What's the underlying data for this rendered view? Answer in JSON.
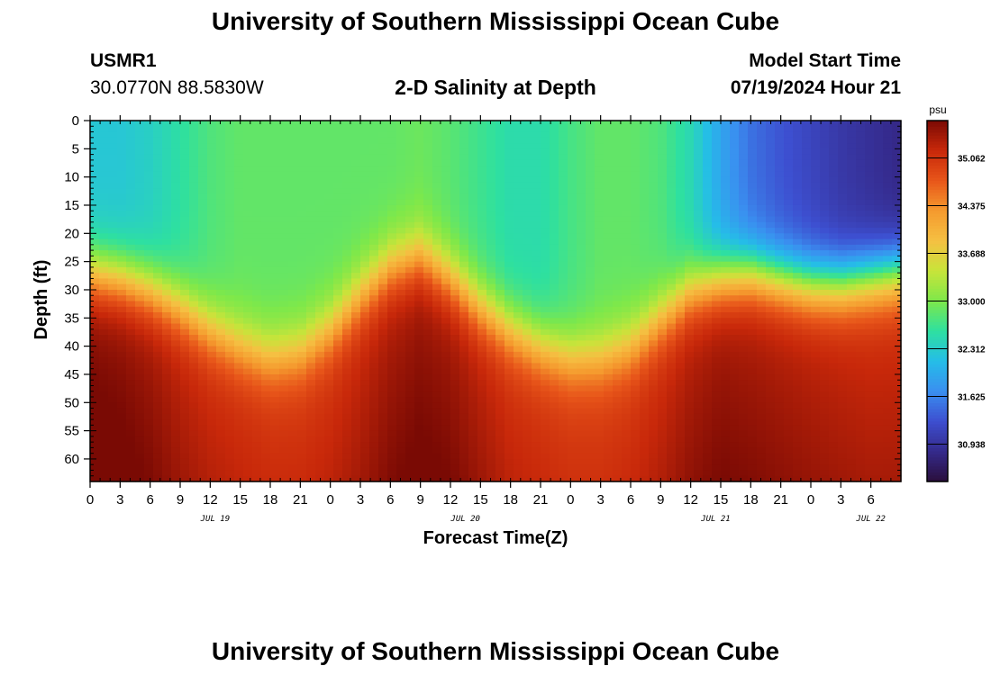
{
  "header": {
    "title_top": "University of Southern Mississippi Ocean Cube",
    "station": "USMR1",
    "coords": "30.0770N  88.5830W",
    "subtitle": "2-D Salinity at Depth",
    "start_label": "Model Start Time",
    "start_value": "07/19/2024 Hour 21",
    "title_bottom": "University of Southern Mississippi Ocean Cube"
  },
  "colors": {
    "palette": [
      "#2a0f3c",
      "#352a8c",
      "#3d4fd0",
      "#3a8ff0",
      "#25bde8",
      "#2ee0a0",
      "#7ee84a",
      "#c8e43a",
      "#f5c042",
      "#f59a2e",
      "#e8561a",
      "#c8280a",
      "#7a0a04"
    ]
  },
  "chart_data": {
    "type": "heatmap",
    "title": "2-D Salinity at Depth",
    "xlabel": "Forecast Time(Z)",
    "ylabel": "Depth (ft)",
    "colorbar_unit": "psu",
    "colorbar_ticks": [
      "35.062",
      "34.375",
      "33.688",
      "33.000",
      "32.312",
      "31.625",
      "30.938"
    ],
    "colorbar_range": [
      30.4,
      35.6
    ],
    "x_hours_range": [
      0,
      81
    ],
    "x_tick_labels": [
      "0",
      "3",
      "6",
      "9",
      "12",
      "15",
      "18",
      "21",
      "0",
      "3",
      "6",
      "9",
      "12",
      "15",
      "18",
      "21",
      "0",
      "3",
      "6",
      "9",
      "12",
      "15",
      "18",
      "21",
      "0",
      "3",
      "6"
    ],
    "date_labels": [
      {
        "label": "JUL 19",
        "hour": 12.5
      },
      {
        "label": "JUL 20",
        "hour": 37.5
      },
      {
        "label": "JUL 21",
        "hour": 62.5
      },
      {
        "label": "JUL 22",
        "hour": 78
      }
    ],
    "y_range": [
      0,
      64
    ],
    "y_tick_labels": [
      "0",
      "5",
      "10",
      "15",
      "20",
      "25",
      "30",
      "35",
      "40",
      "45",
      "50",
      "55",
      "60"
    ],
    "profiles": {
      "hours": [
        0,
        3,
        6,
        9,
        12,
        15,
        18,
        21,
        24,
        27,
        30,
        33,
        36,
        39,
        42,
        45,
        48,
        51,
        54,
        57,
        60,
        63,
        66,
        69,
        72,
        75,
        78,
        81
      ],
      "halocline_depth_ft": [
        27,
        28,
        30,
        33,
        37,
        40,
        42,
        41,
        37,
        31,
        26,
        24,
        28,
        33,
        37,
        40,
        42,
        42,
        40,
        35,
        30,
        28,
        27,
        28,
        29,
        29,
        28,
        27
      ],
      "surface_psu": [
        32.25,
        32.25,
        32.35,
        32.55,
        32.75,
        32.85,
        32.85,
        32.85,
        32.85,
        32.85,
        32.85,
        32.9,
        32.8,
        32.65,
        32.5,
        32.5,
        32.7,
        32.85,
        32.85,
        32.75,
        32.45,
        31.9,
        31.5,
        31.3,
        31.15,
        31.0,
        30.9,
        30.8
      ],
      "bottom_psu": [
        35.5,
        35.45,
        35.35,
        35.2,
        35.1,
        35.05,
        35.0,
        35.0,
        35.05,
        35.15,
        35.3,
        35.4,
        35.35,
        35.2,
        35.05,
        35.0,
        34.95,
        34.95,
        35.0,
        35.1,
        35.25,
        35.35,
        35.3,
        35.25,
        35.2,
        35.15,
        35.1,
        35.1
      ]
    }
  },
  "labels": {
    "x_axis": "Forecast Time(Z)",
    "y_axis": "Depth (ft)",
    "unit": "psu"
  }
}
